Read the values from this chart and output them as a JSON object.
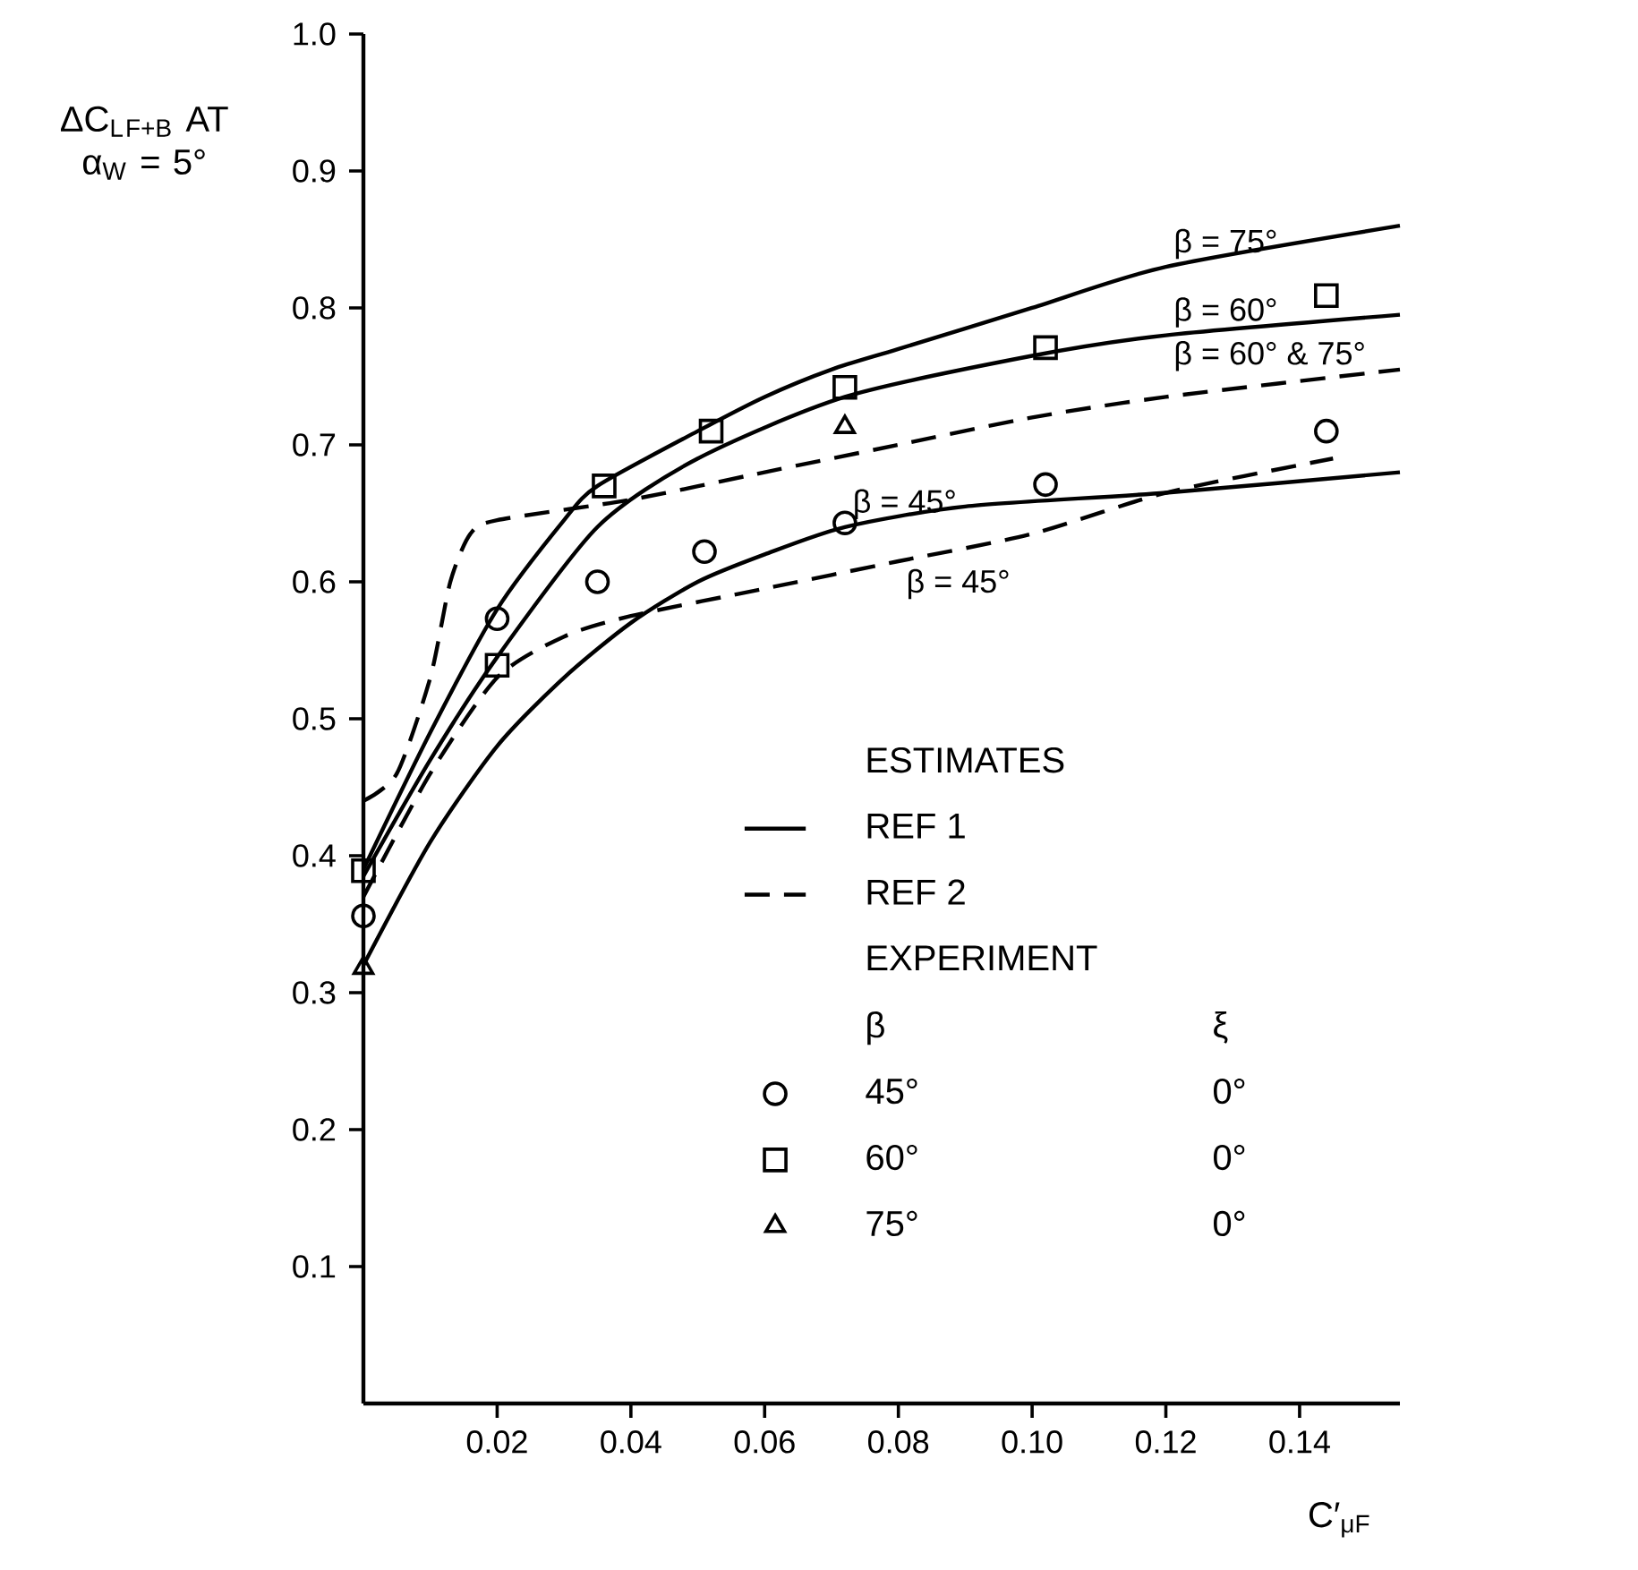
{
  "chart_data": {
    "type": "line",
    "xlabel": "C′$_{μF}$",
    "ylabel": "ΔC$_{L}$$_{F+B}$ AT α$_{W}$ = 5°",
    "annotations": [
      "ESTIMATES",
      "REF 1",
      "REF 2",
      "EXPERIMENT",
      "β",
      "ξ",
      "0°",
      "0°",
      "0°"
    ],
    "xlim": [
      0,
      0.155
    ],
    "ylim": [
      0,
      1.0
    ],
    "xticks": [
      0.02,
      0.04,
      0.06,
      0.08,
      {
        "value": 0.1,
        "label": "0.10"
      },
      0.12,
      0.14
    ],
    "yticks": [
      0.1,
      0.2,
      0.3,
      0.4,
      0.5,
      0.6,
      0.7,
      0.8,
      0.9,
      {
        "value": 1.0,
        "label": "1.0"
      }
    ],
    "legend": "bottom",
    "series": [
      {
        "name": "β = 75°",
        "line_style": "solid",
        "color": "#000000",
        "x": [
          0,
          0.01,
          0.02,
          0.03,
          0.035,
          0.05,
          0.06,
          0.07,
          0.08,
          0.1,
          0.12,
          0.155
        ],
        "values": [
          0.39,
          0.49,
          0.58,
          0.645,
          0.67,
          0.71,
          0.735,
          0.755,
          0.77,
          0.8,
          0.83,
          0.86
        ]
      },
      {
        "name": "β = 60°",
        "line_style": "solid",
        "color": "#000000",
        "x": [
          0,
          0.01,
          0.02,
          0.035,
          0.05,
          0.072,
          0.1,
          0.12,
          0.155
        ],
        "values": [
          0.385,
          0.47,
          0.545,
          0.64,
          0.69,
          0.735,
          0.765,
          0.78,
          0.795
        ]
      },
      {
        "name": "β = 45°",
        "line_style": "solid",
        "color": "#000000",
        "x": [
          0,
          0.01,
          0.02,
          0.03,
          0.04,
          0.05,
          0.06,
          0.072,
          0.09,
          0.12,
          0.155
        ],
        "values": [
          0.32,
          0.41,
          0.48,
          0.53,
          0.57,
          0.6,
          0.62,
          0.64,
          0.655,
          0.665,
          0.68
        ]
      },
      {
        "name": "β = 60° & 75°",
        "line_style": "dashed",
        "color": "#000000",
        "x": [
          0,
          0.005,
          0.01,
          0.013,
          0.016,
          0.02,
          0.04,
          0.06,
          0.08,
          0.1,
          0.12,
          0.155
        ],
        "values": [
          0.44,
          0.46,
          0.53,
          0.6,
          0.635,
          0.645,
          0.66,
          0.68,
          0.7,
          0.72,
          0.735,
          0.755
        ]
      },
      {
        "name": "β = 45°",
        "line_style": "dashed",
        "color": "#000000",
        "x": [
          0,
          0.01,
          0.02,
          0.03,
          0.04,
          0.06,
          0.08,
          0.1,
          0.12,
          0.145
        ],
        "values": [
          0.37,
          0.46,
          0.53,
          0.56,
          0.575,
          0.595,
          0.615,
          0.635,
          0.665,
          0.69
        ]
      },
      {
        "name": "45°",
        "type": "scatter",
        "marker": "circle",
        "color": "#000000",
        "x": [
          0,
          0.02,
          0.035,
          0.051,
          0.072,
          0.102,
          0.144
        ],
        "values": [
          0.356,
          0.573,
          0.6,
          0.622,
          0.643,
          0.671,
          0.71
        ]
      },
      {
        "name": "60°",
        "type": "scatter",
        "marker": "square",
        "color": "#000000",
        "x": [
          0,
          0.02,
          0.036,
          0.052,
          0.072,
          0.102,
          0.144
        ],
        "values": [
          0.389,
          0.539,
          0.67,
          0.71,
          0.742,
          0.771,
          0.809
        ]
      },
      {
        "name": "75°",
        "type": "scatter",
        "marker": "triangle",
        "color": "#000000",
        "x": [
          0,
          0.072
        ],
        "values": [
          0.318,
          0.713
        ]
      }
    ]
  }
}
